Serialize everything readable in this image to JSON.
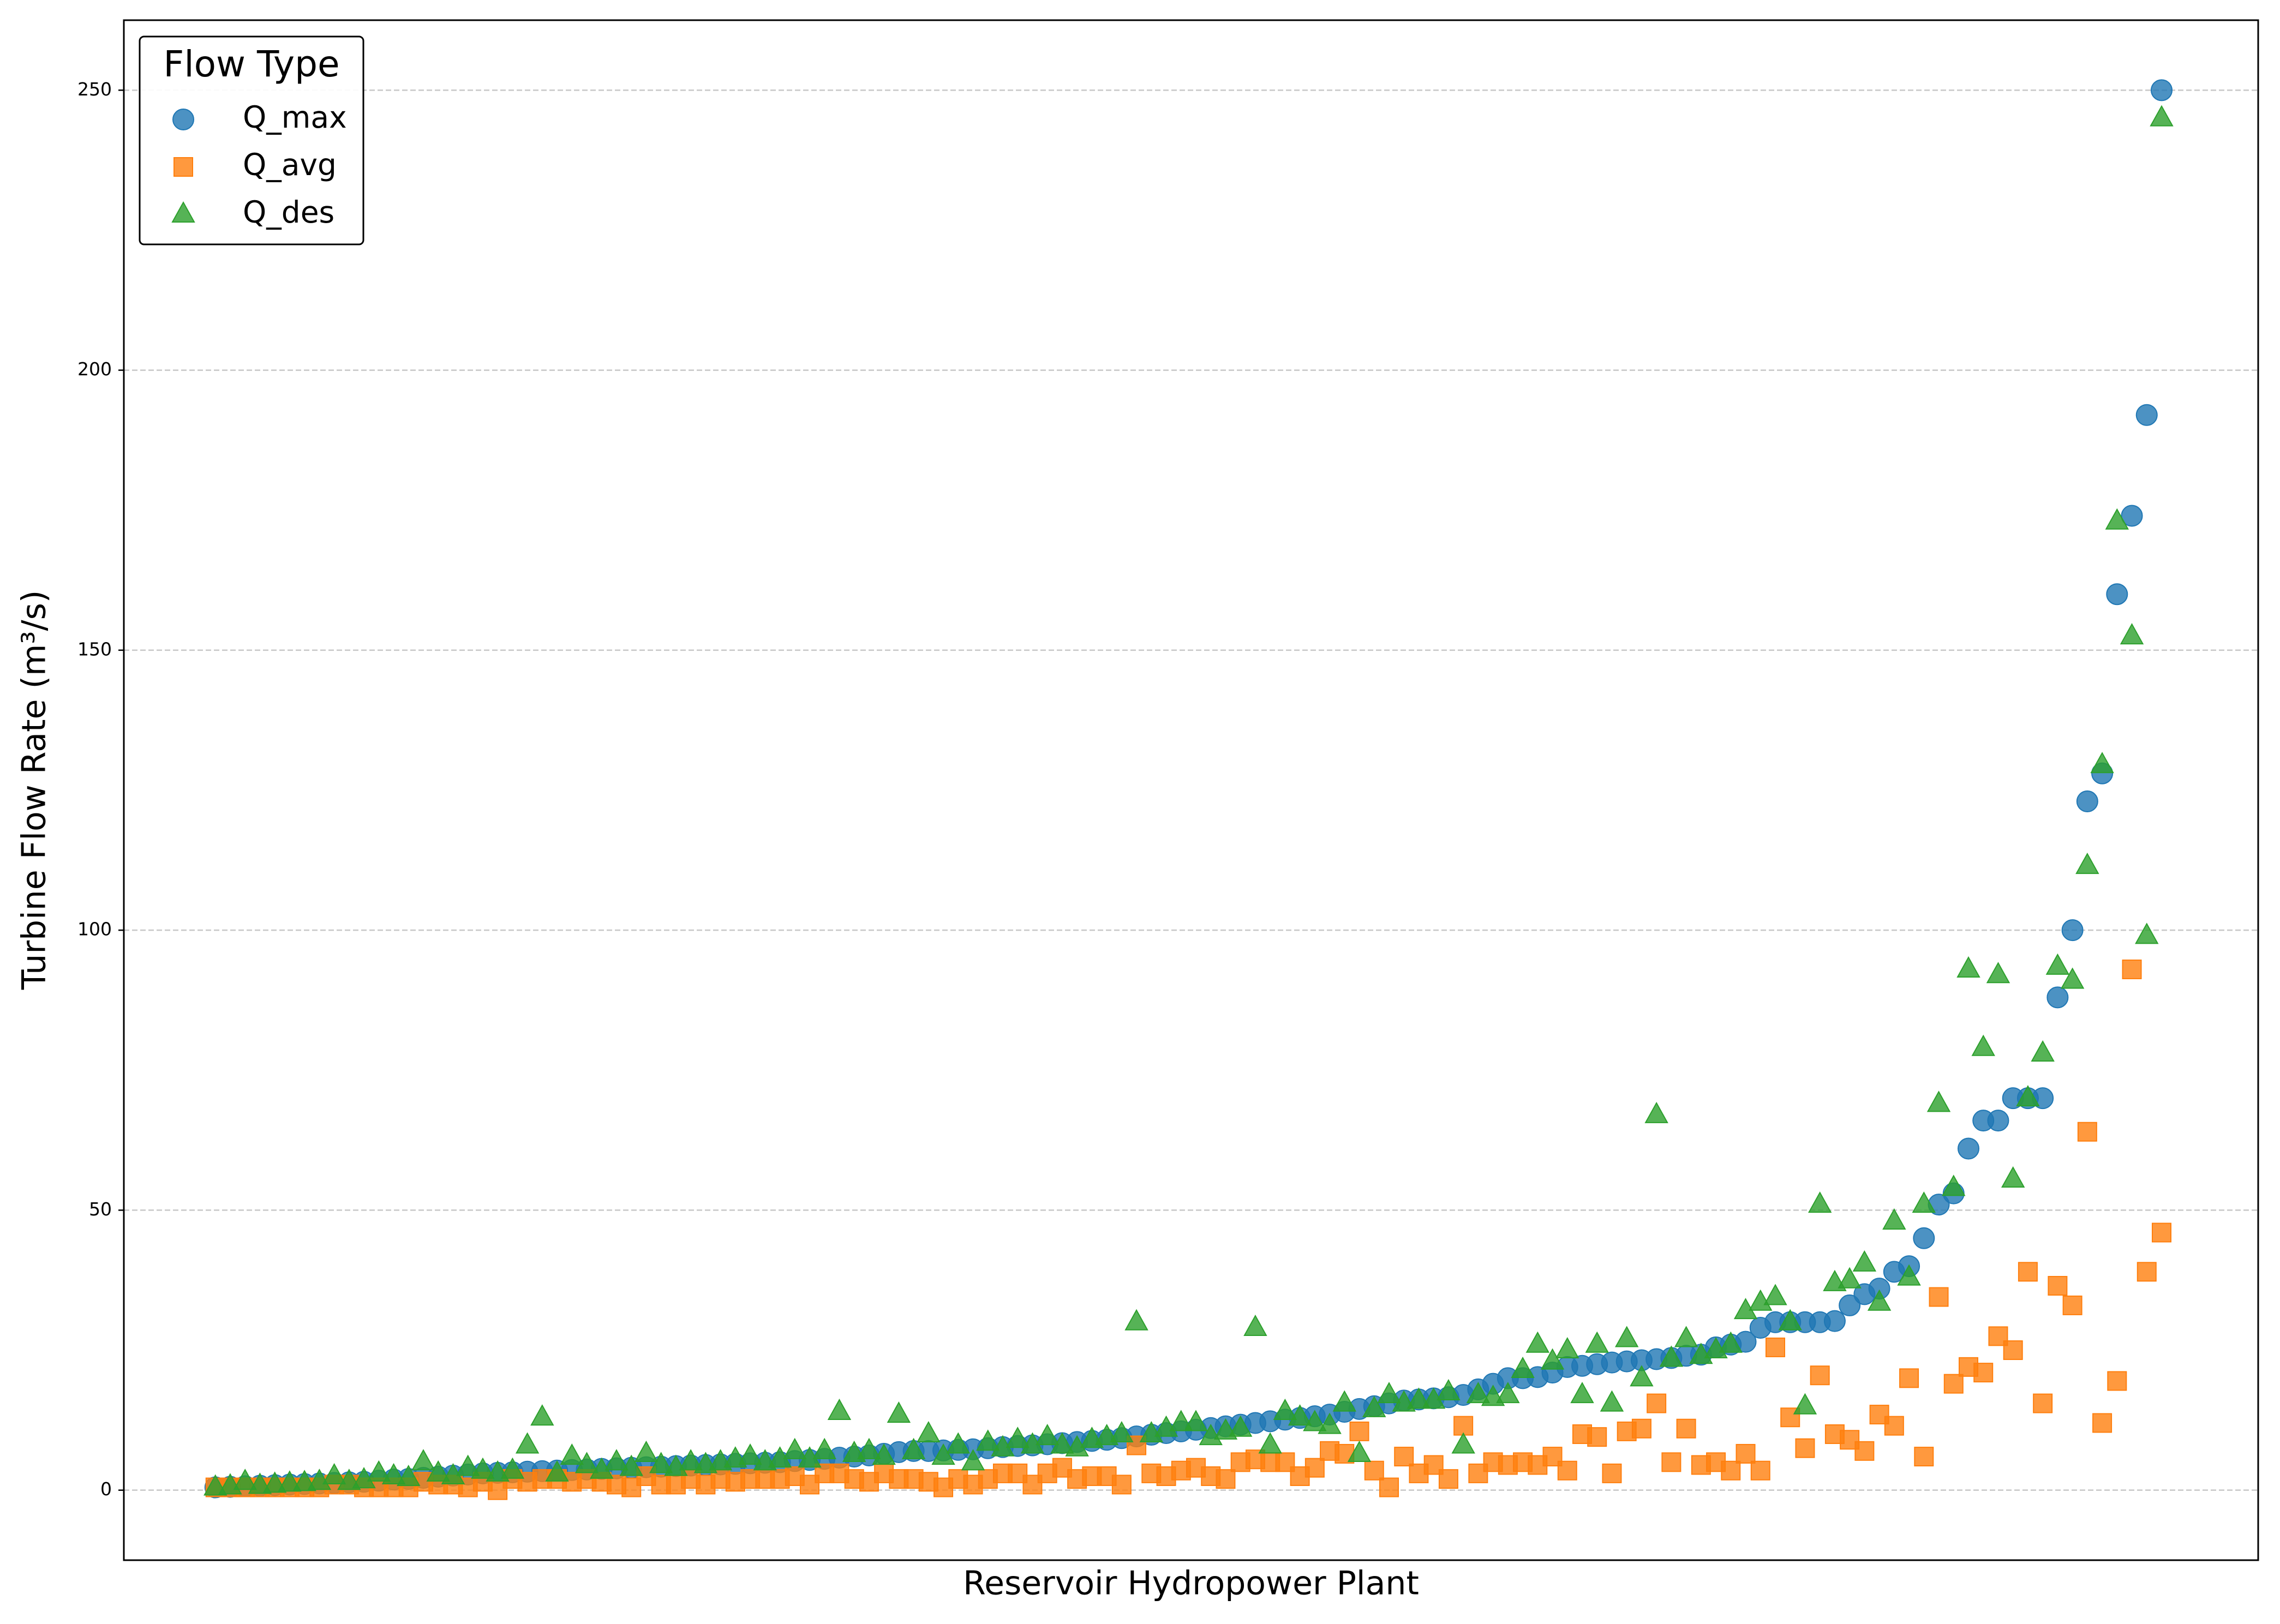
{
  "chart_data": {
    "type": "scatter",
    "x_label": "Reservoir Hydropower Plant",
    "y_label": "Turbine Flow Rate (m³/s)",
    "legend_title": "Flow Type",
    "legend": "upper left",
    "grid": true,
    "ylim": [
      -12.5,
      262.5
    ],
    "yticks": [
      0,
      50,
      100,
      150,
      200,
      250
    ],
    "series": [
      {
        "name": "Q_max",
        "color": "#1f77b4",
        "marker": "o",
        "values": [
          0.5,
          0.6,
          0.7,
          0.8,
          0.9,
          1.0,
          1.1,
          1.2,
          1.3,
          1.4,
          1.5,
          1.7,
          1.9,
          2.0,
          2.2,
          2.4,
          2.6,
          2.8,
          3.0,
          3.1,
          3.2,
          3.3,
          3.4,
          3.5,
          3.6,
          3.7,
          3.8,
          3.9,
          4.0,
          4.1,
          4.2,
          4.3,
          4.4,
          4.5,
          4.6,
          4.7,
          4.8,
          4.9,
          5.0,
          5.2,
          5.4,
          5.6,
          5.8,
          6.0,
          6.2,
          6.5,
          6.8,
          7.0,
          7.0,
          7.1,
          7.2,
          7.3,
          7.5,
          7.7,
          7.9,
          8.0,
          8.2,
          8.4,
          8.6,
          8.8,
          9.0,
          9.3,
          9.6,
          9.9,
          10.2,
          10.5,
          10.8,
          11.1,
          11.4,
          11.7,
          12.0,
          12.3,
          12.6,
          12.9,
          13.2,
          13.5,
          14.0,
          14.5,
          15.0,
          15.5,
          16.0,
          16.2,
          16.4,
          16.6,
          17.0,
          18.0,
          19.0,
          20.0,
          20.0,
          20.2,
          21.0,
          22.0,
          22.2,
          22.5,
          22.8,
          23.0,
          23.2,
          23.4,
          23.6,
          24.0,
          24.2,
          25.5,
          26.0,
          26.5,
          29.0,
          30.0,
          30.0,
          30.0,
          30.0,
          30.2,
          33.0,
          35,
          36,
          39,
          40,
          45,
          51,
          53,
          61,
          66,
          66,
          70,
          70,
          70,
          88,
          100,
          123,
          128,
          160,
          174,
          192,
          250
        ]
      },
      {
        "name": "Q_avg",
        "color": "#ff7f0e",
        "marker": "s",
        "values": [
          0.5,
          0.5,
          0.5,
          0.5,
          0.5,
          0.5,
          0.5,
          0.5,
          1,
          1,
          0.5,
          0.5,
          0.5,
          0.5,
          1.5,
          1,
          1,
          0.5,
          1.5,
          0,
          2,
          1.5,
          2,
          2,
          1.5,
          2,
          1.5,
          1,
          0.5,
          2.5,
          1,
          1,
          2,
          1,
          2,
          1.5,
          2,
          2,
          2,
          2.5,
          1,
          3,
          3,
          2,
          1.5,
          3,
          2,
          2,
          1.5,
          0.5,
          2,
          1,
          2,
          3,
          3,
          1,
          3,
          4,
          2,
          2.5,
          2.5,
          1,
          8,
          3,
          2.5,
          3.5,
          4,
          2.5,
          2,
          5,
          5.5,
          5,
          5,
          2.5,
          4,
          7,
          6.5,
          10.5,
          3.5,
          0.5,
          6,
          3,
          4.5,
          2,
          11.5,
          3,
          5,
          4.5,
          5,
          4.5,
          6,
          3.5,
          10,
          9.5,
          3,
          10.5,
          11,
          15.5,
          5,
          11,
          4.5,
          5,
          3.5,
          6.5,
          3.5,
          25.5,
          13,
          7.5,
          20.5,
          10,
          9,
          7,
          13.5,
          11.5,
          20,
          6,
          34.5,
          19,
          22,
          21,
          27.5,
          25,
          39,
          15.5,
          36.5,
          33,
          64,
          12,
          19.5,
          93,
          39,
          46
        ]
      },
      {
        "name": "Q_des",
        "color": "#2ca02c",
        "marker": "^",
        "values": [
          0.5,
          0.7,
          1.5,
          0.8,
          1.0,
          1.2,
          1.3,
          1.5,
          2.5,
          1.5,
          1.8,
          3,
          2.5,
          2.2,
          5,
          3,
          2.5,
          4,
          3.5,
          3,
          3.5,
          8,
          13,
          3,
          6,
          4.5,
          3.5,
          5,
          4,
          6.5,
          4.5,
          4,
          5,
          4.5,
          5,
          5.5,
          6,
          5,
          5.5,
          7,
          5.5,
          7,
          14,
          6.5,
          7,
          6,
          13.5,
          7,
          10,
          6,
          8,
          5,
          8.5,
          7.5,
          9,
          8,
          9.5,
          8,
          7.5,
          9,
          9.5,
          10,
          30,
          10,
          11,
          12,
          12,
          9.5,
          10.5,
          11,
          29,
          8,
          14,
          13,
          12,
          11.5,
          15.5,
          6.5,
          14.5,
          17,
          15.5,
          16,
          16,
          17.5,
          8,
          17,
          16.5,
          17,
          21.5,
          26,
          23,
          25,
          17,
          26,
          15.5,
          27,
          20,
          67,
          23.5,
          27,
          24,
          25,
          26,
          32,
          33.5,
          34.5,
          30,
          15,
          51,
          37,
          37.5,
          40.5,
          33.5,
          48,
          38,
          51,
          69,
          54,
          93,
          79,
          92,
          55.5,
          70,
          78,
          93.5,
          91,
          111.5,
          129.5,
          173,
          152.5,
          99,
          245
        ]
      }
    ]
  }
}
